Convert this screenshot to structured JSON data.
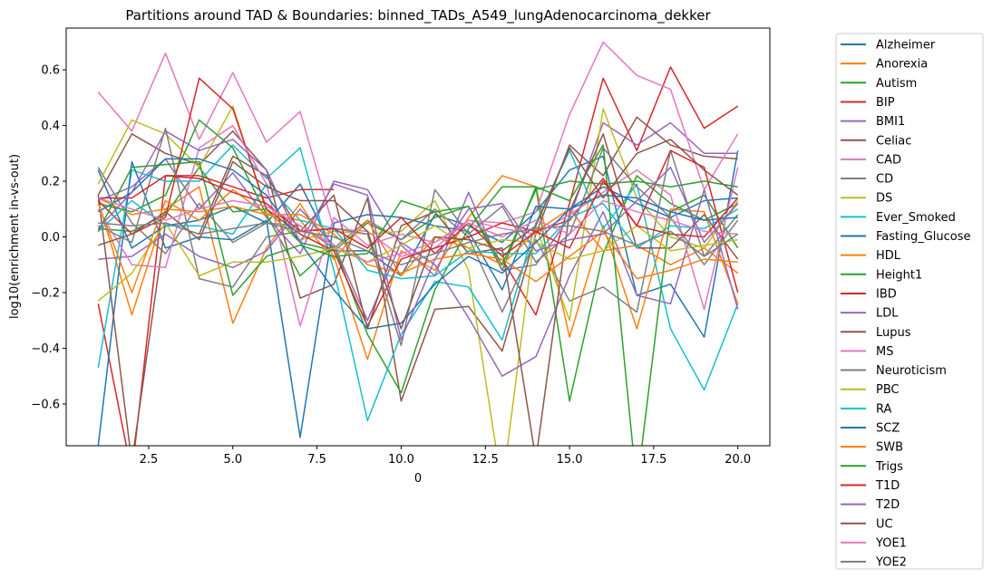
{
  "chart_data": {
    "type": "line",
    "title": "Partitions around TAD & Boundaries: binned_TADs_A549_lungAdenocarcinoma_dekker",
    "xlabel": "0",
    "ylabel": "log10(enrichment in-vs-out)",
    "xlim": [
      0.05,
      20.95
    ],
    "ylim": [
      -0.75,
      0.75
    ],
    "xticks": [
      2.5,
      5.0,
      7.5,
      10.0,
      12.5,
      15.0,
      17.5,
      20.0
    ],
    "xtick_labels": [
      "2.5",
      "5.0",
      "7.5",
      "10.0",
      "12.5",
      "15.0",
      "17.5",
      "20.0"
    ],
    "yticks": [
      -0.6,
      -0.4,
      -0.2,
      0.0,
      0.2,
      0.4,
      0.6
    ],
    "ytick_labels": [
      "−0.6",
      "−0.4",
      "−0.2",
      "0.0",
      "0.2",
      "0.4",
      "0.6"
    ],
    "grid": false,
    "legend_position": "outside-right",
    "x": [
      1,
      2,
      3,
      4,
      5,
      6,
      7,
      8,
      9,
      10,
      11,
      12,
      13,
      14,
      15,
      16,
      17,
      18,
      19,
      20
    ],
    "series": [
      {
        "name": "Alzheimer",
        "color": "#1f77b4",
        "values": [
          0.24,
          -0.04,
          0.04,
          0.06,
          0.11,
          0.05,
          0.19,
          -0.05,
          -0.05,
          -0.14,
          0.08,
          0.04,
          -0.02,
          0.09,
          0.24,
          0.29,
          -0.21,
          -0.17,
          -0.36,
          0.31
        ]
      },
      {
        "name": "Anorexia",
        "color": "#ff7f0e",
        "values": [
          0.13,
          -0.28,
          0.1,
          0.18,
          -0.31,
          -0.04,
          0.12,
          -0.07,
          -0.44,
          -0.05,
          -0.12,
          0.07,
          0.22,
          0.18,
          -0.36,
          0.04,
          -0.33,
          0.1,
          0.09,
          -0.24
        ]
      },
      {
        "name": "Autism",
        "color": "#2ca02c",
        "values": [
          0.03,
          0.02,
          0.08,
          0.25,
          0.09,
          0.1,
          -0.02,
          -0.05,
          0.05,
          -0.01,
          0.07,
          0.11,
          -0.12,
          0.18,
          -0.59,
          -0.06,
          0.22,
          0.12,
          0.06,
          0.12
        ]
      },
      {
        "name": "BIP",
        "color": "#d62728",
        "values": [
          -0.24,
          -0.85,
          0.22,
          0.22,
          0.18,
          0.14,
          0.17,
          0.17,
          null,
          null,
          null,
          null,
          -0.08,
          -0.28,
          0.12,
          0.57,
          0.31,
          0.61,
          0.39,
          0.47
        ]
      },
      {
        "name": "BMI1",
        "color": "#9467bd",
        "values": [
          0.13,
          0.18,
          0.28,
          0.1,
          0.23,
          0.07,
          -0.06,
          0.2,
          0.17,
          -0.03,
          -0.14,
          0.16,
          -0.12,
          -0.1,
          0.07,
          0.41,
          0.33,
          0.41,
          0.3,
          0.3
        ]
      },
      {
        "name": "Celiac",
        "color": "#8c564b",
        "values": [
          0.15,
          0.37,
          0.3,
          0.26,
          0.38,
          0.24,
          -0.22,
          -0.17,
          0.14,
          -0.59,
          -0.26,
          -0.25,
          -0.41,
          0.01,
          0.33,
          0.22,
          0.43,
          0.33,
          0.29,
          0.28
        ]
      },
      {
        "name": "CAD",
        "color": "#e377c2",
        "values": [
          0.52,
          0.38,
          0.66,
          0.35,
          0.59,
          0.34,
          0.45,
          0.03,
          0.02,
          -0.07,
          -0.04,
          0.06,
          0.05,
          0.09,
          0.44,
          0.7,
          0.58,
          0.53,
          0.17,
          0.37
        ]
      },
      {
        "name": "CD",
        "color": "#7f7f7f",
        "values": [
          0.25,
          0.05,
          -0.06,
          0.12,
          -0.02,
          0.05,
          0.04,
          -0.04,
          0.06,
          -0.01,
          0.1,
          0.0,
          -0.27,
          -0.01,
          -0.23,
          -0.18,
          -0.27,
          0.31,
          -0.07,
          0.08
        ]
      },
      {
        "name": "DS",
        "color": "#bcbd22",
        "values": [
          0.19,
          0.42,
          0.37,
          0.25,
          0.47,
          0.09,
          -0.01,
          0.02,
          0.01,
          0.02,
          0.13,
          -0.12,
          -0.9,
          0.04,
          -0.3,
          0.46,
          0.14,
          0.0,
          -0.04,
          0.13
        ]
      },
      {
        "name": "Ever_Smoked",
        "color": "#17becf",
        "values": [
          -0.47,
          0.24,
          0.2,
          0.2,
          0.33,
          0.21,
          0.32,
          -0.12,
          -0.66,
          -0.35,
          -0.16,
          -0.18,
          -0.37,
          0.05,
          0.31,
          0.03,
          0.19,
          -0.33,
          -0.55,
          -0.24
        ]
      },
      {
        "name": "Fasting_Glucose",
        "color": "#1f77b4",
        "values": [
          -0.75,
          0.27,
          -0.04,
          0.0,
          -0.01,
          0.06,
          -0.72,
          0.05,
          0.08,
          0.07,
          0.04,
          0.02,
          -0.19,
          0.11,
          0.1,
          0.18,
          0.12,
          0.07,
          0.13,
          0.14
        ]
      },
      {
        "name": "HDL",
        "color": "#ff7f0e",
        "values": [
          0.14,
          0.08,
          0.1,
          0.09,
          0.11,
          0.08,
          0.06,
          -0.08,
          0.06,
          -0.14,
          0.0,
          -0.04,
          -0.1,
          0.02,
          0.1,
          -0.05,
          -0.03,
          -0.1,
          -0.04,
          -0.13
        ]
      },
      {
        "name": "Height1",
        "color": "#2ca02c",
        "values": [
          0.12,
          0.09,
          0.15,
          0.42,
          0.32,
          0.08,
          -0.14,
          -0.03,
          -0.35,
          -0.56,
          -0.19,
          0.03,
          0.18,
          0.18,
          0.13,
          0.33,
          -0.9,
          0.09,
          0.15,
          -0.04
        ]
      },
      {
        "name": "IBD",
        "color": "#d62728",
        "values": [
          0.13,
          0.01,
          0.07,
          0.57,
          0.46,
          0.1,
          0.01,
          -0.05,
          -0.32,
          -0.08,
          -0.04,
          0.0,
          0.05,
          0.02,
          0.06,
          0.21,
          0.04,
          0.31,
          0.25,
          -0.2
        ]
      },
      {
        "name": "LDL",
        "color": "#9467bd",
        "values": [
          -0.08,
          -0.07,
          0.01,
          -0.07,
          -0.11,
          -0.05,
          0.1,
          -0.03,
          -0.3,
          -0.02,
          -0.1,
          -0.29,
          -0.5,
          -0.43,
          -0.14,
          0.09,
          -0.21,
          -0.24,
          0.17,
          -0.26
        ]
      },
      {
        "name": "Lupus",
        "color": "#8c564b",
        "values": [
          0.15,
          -0.81,
          0.05,
          0.01,
          0.29,
          0.22,
          0.02,
          0.15,
          -0.33,
          0.04,
          0.09,
          -0.06,
          -0.04,
          -0.8,
          0.09,
          0.37,
          -0.04,
          -0.04,
          0.08,
          -0.08
        ]
      },
      {
        "name": "MS",
        "color": "#e377c2",
        "values": [
          0.1,
          -0.1,
          -0.11,
          0.32,
          0.4,
          0.19,
          -0.32,
          0.07,
          -0.03,
          0.01,
          -0.02,
          0.06,
          0.03,
          0.01,
          0.08,
          0.16,
          0.24,
          0.15,
          -0.26,
          0.25
        ]
      },
      {
        "name": "Neuroticism",
        "color": "#7f7f7f",
        "values": [
          0.04,
          -0.02,
          0.39,
          -0.15,
          -0.18,
          0.0,
          0.02,
          0.03,
          0.01,
          -0.39,
          0.17,
          0.01,
          0.11,
          -0.09,
          0.01,
          0.32,
          0.18,
          0.07,
          -0.1,
          0.06
        ]
      },
      {
        "name": "PBC",
        "color": "#bcbd22",
        "values": [
          -0.23,
          -0.13,
          0.05,
          -0.14,
          -0.09,
          -0.09,
          -0.07,
          -0.04,
          -0.09,
          -0.03,
          0.04,
          -0.04,
          -0.01,
          -0.02,
          -0.08,
          -0.05,
          0.04,
          -0.05,
          -0.03,
          -0.01
        ]
      },
      {
        "name": "RA",
        "color": "#17becf",
        "values": [
          0.02,
          0.13,
          0.04,
          0.04,
          0.01,
          0.19,
          0.06,
          0.03,
          -0.12,
          -0.15,
          -0.14,
          -0.05,
          -0.06,
          -0.06,
          0.07,
          0.12,
          -0.04,
          0.04,
          0.03,
          0.1
        ]
      },
      {
        "name": "SCZ",
        "color": "#1f77b4",
        "values": [
          0.09,
          0.16,
          0.28,
          0.28,
          0.24,
          0.15,
          -0.02,
          -0.19,
          -0.33,
          -0.31,
          -0.17,
          -0.07,
          -0.13,
          -0.02,
          0.1,
          0.15,
          0.14,
          0.09,
          0.06,
          0.07
        ]
      },
      {
        "name": "SWB",
        "color": "#ff7f0e",
        "values": [
          0.12,
          -0.2,
          0.13,
          0.06,
          0.17,
          0.08,
          0.08,
          0.01,
          -0.1,
          -0.13,
          -0.08,
          -0.06,
          -0.08,
          -0.16,
          -0.07,
          0.02,
          -0.15,
          -0.12,
          -0.08,
          -0.09
        ]
      },
      {
        "name": "Trigs",
        "color": "#2ca02c",
        "values": [
          0.02,
          0.25,
          0.26,
          0.27,
          -0.21,
          -0.07,
          -0.03,
          -0.07,
          -0.06,
          0.13,
          0.09,
          0.11,
          -0.1,
          0.17,
          0.2,
          0.19,
          0.2,
          0.18,
          0.2,
          0.18
        ]
      },
      {
        "name": "T1D",
        "color": "#d62728",
        "values": [
          0.14,
          0.14,
          0.22,
          0.21,
          0.16,
          0.12,
          0.02,
          0.03,
          -0.04,
          0.07,
          -0.06,
          0.05,
          -0.07,
          0.02,
          -0.04,
          0.2,
          0.04,
          0.01,
          0.0,
          0.14
        ]
      },
      {
        "name": "T2D",
        "color": "#9467bd",
        "values": [
          0.03,
          0.16,
          0.38,
          0.31,
          0.35,
          0.24,
          -0.02,
          0.19,
          0.15,
          -0.37,
          -0.08,
          0.1,
          0.12,
          -0.05,
          -0.01,
          0.01,
          0.13,
          0.25,
          -0.02,
          0.12
        ]
      },
      {
        "name": "UC",
        "color": "#8c564b",
        "values": [
          -0.03,
          0.01,
          0.09,
          -0.01,
          0.27,
          0.18,
          0.13,
          0.13,
          0.02,
          -0.33,
          0.0,
          -0.01,
          -0.05,
          0.04,
          0.32,
          0.14,
          0.3,
          0.35,
          0.24,
          0.15
        ]
      },
      {
        "name": "YOE1",
        "color": "#e377c2",
        "values": [
          0.14,
          0.1,
          0.06,
          0.1,
          0.13,
          0.11,
          0.04,
          -0.03,
          -0.09,
          -0.06,
          -0.02,
          0.05,
          0.0,
          0.06,
          0.01,
          0.13,
          0.09,
          0.06,
          0.02,
          0.01
        ]
      },
      {
        "name": "YOE2",
        "color": "#7f7f7f",
        "values": [
          0.05,
          0.04,
          0.05,
          0.01,
          0.03,
          0.05,
          0.02,
          0.0,
          -0.05,
          -0.1,
          -0.06,
          -0.02,
          0.01,
          0.03,
          0.04,
          0.02,
          -0.03,
          0.02,
          -0.07,
          0.01
        ]
      }
    ]
  }
}
